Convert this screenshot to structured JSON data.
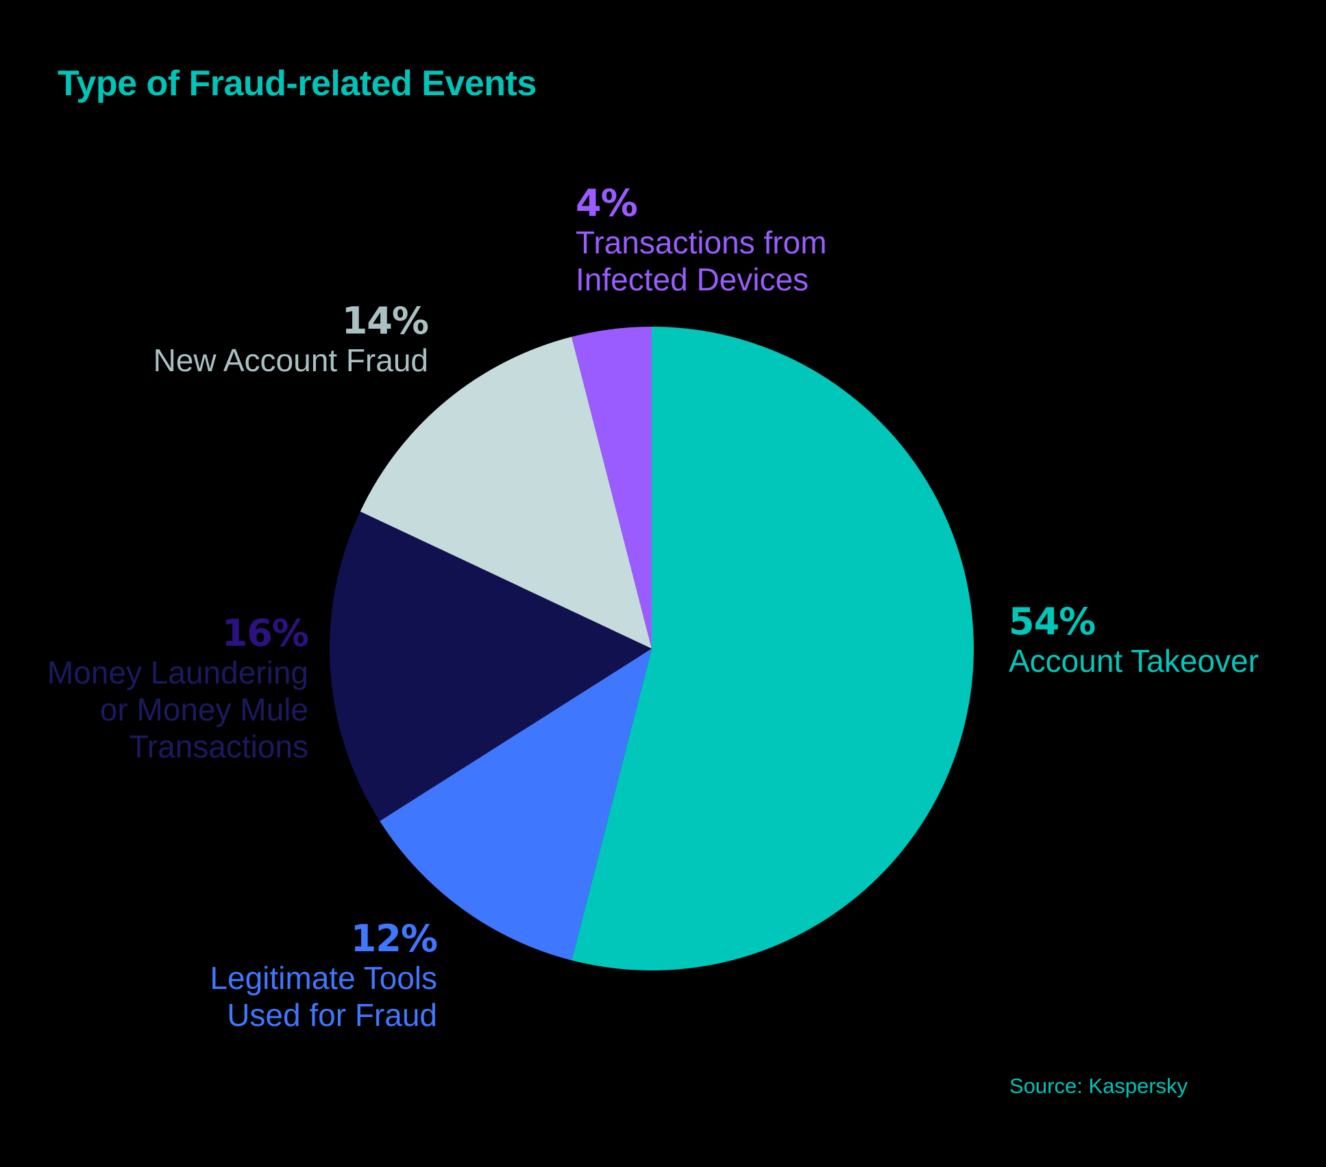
{
  "title": "Type of Fraud-related Events",
  "source": "Source: Kaspersky",
  "colors": {
    "background": "#000000",
    "title": "#00C4B8"
  },
  "slices": [
    {
      "pct_label": "54%",
      "name_lines": [
        "Account Takeover"
      ],
      "value": 54,
      "color": "#00C7BA",
      "pct_color": "#00C7BA",
      "text_color": "#00C7BA"
    },
    {
      "pct_label": "12%",
      "name_lines": [
        "Legitimate Tools",
        "Used for Fraud"
      ],
      "value": 12,
      "color": "#4077FF",
      "pct_color": "#4077FF",
      "text_color": "#4077FF"
    },
    {
      "pct_label": "16%",
      "name_lines": [
        "Money Laundering",
        "or Money Mule",
        "Transactions"
      ],
      "value": 16,
      "color": "#12114F",
      "pct_color": "#2B1280",
      "text_color": "#1A1A60"
    },
    {
      "pct_label": "14%",
      "name_lines": [
        "New Account Fraud"
      ],
      "value": 14,
      "color": "#C5DBDC",
      "pct_color": "#A9C1C2",
      "text_color": "#A9C1C2"
    },
    {
      "pct_label": "4%",
      "name_lines": [
        "Transactions from",
        "Infected Devices"
      ],
      "value": 4,
      "color": "#9B5CFF",
      "pct_color": "#9B5CFF",
      "text_color": "#9B5CFF"
    }
  ],
  "chart_data": {
    "type": "pie",
    "title": "Type of Fraud-related Events",
    "categories": [
      "Account Takeover",
      "Legitimate Tools Used for Fraud",
      "Money Laundering or Money Mule Transactions",
      "New Account Fraud",
      "Transactions from Infected Devices"
    ],
    "values": [
      54,
      12,
      16,
      14,
      4
    ],
    "unit": "%",
    "colors": [
      "#00C7BA",
      "#4077FF",
      "#12114F",
      "#C5DBDC",
      "#9B5CFF"
    ],
    "start_angle": "12 o'clock",
    "direction": "clockwise",
    "annotations": "Source: Kaspersky",
    "legend": "none (direct labels)"
  }
}
